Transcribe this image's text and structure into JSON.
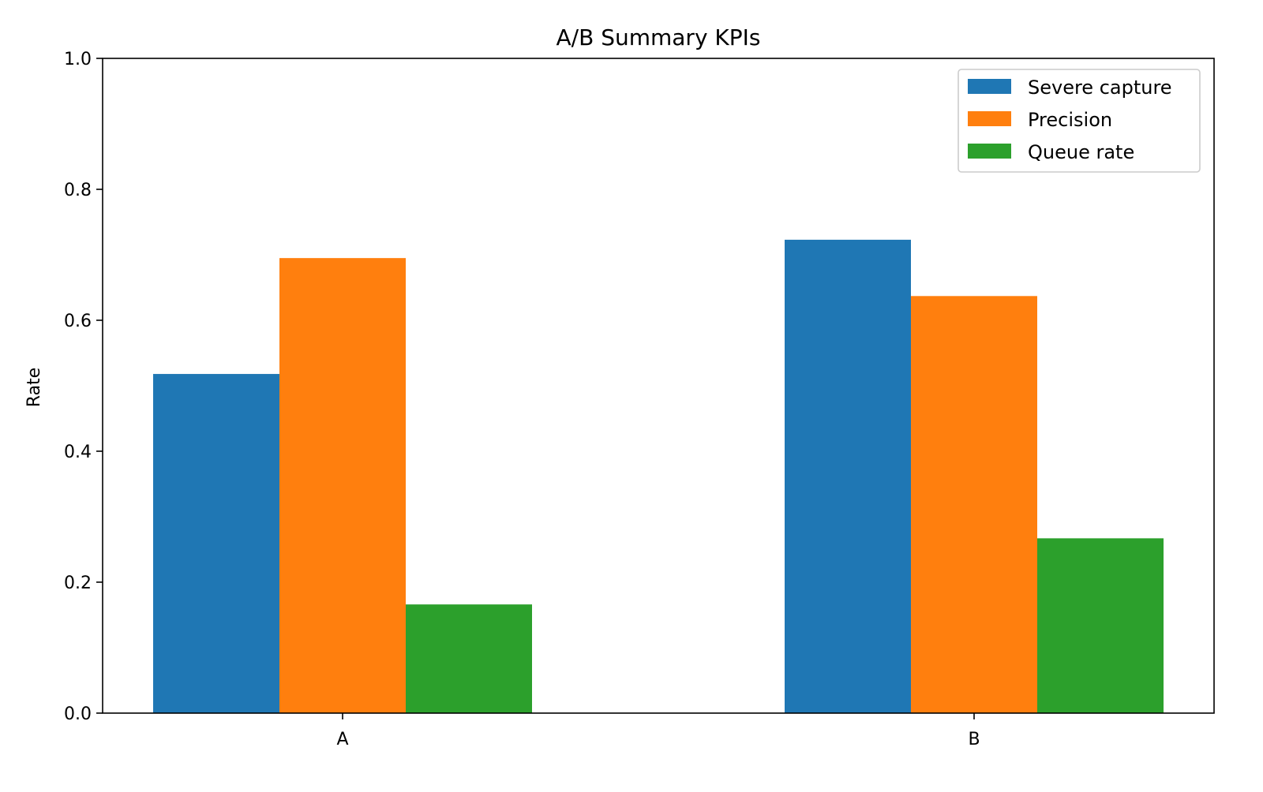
{
  "chart_data": {
    "type": "bar",
    "title": "A/B Summary KPIs",
    "xlabel": "",
    "ylabel": "Rate",
    "categories": [
      "A",
      "B"
    ],
    "series": [
      {
        "name": "Severe capture",
        "color": "#1f77b4",
        "values": [
          0.518,
          0.723
        ]
      },
      {
        "name": "Precision",
        "color": "#ff7f0e",
        "values": [
          0.695,
          0.637
        ]
      },
      {
        "name": "Queue rate",
        "color": "#2ca02c",
        "values": [
          0.166,
          0.267
        ]
      }
    ],
    "ylim": [
      0,
      1.0
    ],
    "yticks": [
      0.0,
      0.2,
      0.4,
      0.6,
      0.8,
      1.0
    ],
    "ytick_labels": [
      "0.0",
      "0.2",
      "0.4",
      "0.6",
      "0.8",
      "1.0"
    ],
    "grid": false,
    "legend_position": "top-right"
  }
}
